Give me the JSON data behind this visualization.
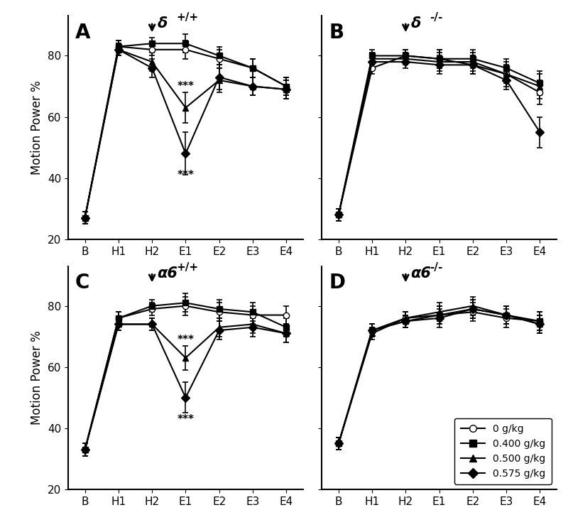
{
  "xticklabels": [
    "B",
    "H1",
    "H2",
    "E1",
    "E2",
    "E3",
    "E4"
  ],
  "x": [
    0,
    1,
    2,
    3,
    4,
    5,
    6
  ],
  "ylim": [
    20,
    93
  ],
  "yticks": [
    20,
    40,
    60,
    80
  ],
  "ylabel": "Motion Power %",
  "panels": [
    {
      "label": "A",
      "title": "δ",
      "title_superscript": "+/+",
      "series": [
        {
          "name": "0 g/kg",
          "marker": "o",
          "filled": false,
          "y": [
            27,
            83,
            82,
            82,
            79,
            76,
            70
          ],
          "yerr": [
            2,
            2,
            2,
            3,
            3,
            3,
            3
          ]
        },
        {
          "name": "0.400 g/kg",
          "marker": "s",
          "filled": true,
          "y": [
            27,
            83,
            84,
            84,
            80,
            76,
            70
          ],
          "yerr": [
            2,
            2,
            2,
            3,
            3,
            3,
            3
          ]
        },
        {
          "name": "0.500 g/kg",
          "marker": "^",
          "filled": true,
          "y": [
            27,
            82,
            78,
            63,
            72,
            70,
            69
          ],
          "yerr": [
            2,
            2,
            3,
            5,
            4,
            3,
            3
          ]
        },
        {
          "name": "0.575 g/kg",
          "marker": "D",
          "filled": true,
          "y": [
            27,
            82,
            76,
            48,
            73,
            70,
            69
          ],
          "yerr": [
            2,
            2,
            3,
            7,
            4,
            3,
            3
          ]
        }
      ],
      "arrow_xi": 2,
      "stars_upper": {
        "xi": 3,
        "y": 70,
        "text": "***"
      },
      "stars_lower": {
        "xi": 3,
        "y": 41,
        "text": "***"
      }
    },
    {
      "label": "B",
      "title": "δ",
      "title_superscript": "-/-",
      "series": [
        {
          "name": "0 g/kg",
          "marker": "o",
          "filled": false,
          "y": [
            28,
            76,
            80,
            79,
            77,
            74,
            68
          ],
          "yerr": [
            2,
            2,
            2,
            3,
            3,
            4,
            4
          ]
        },
        {
          "name": "0.400 g/kg",
          "marker": "s",
          "filled": true,
          "y": [
            28,
            80,
            80,
            79,
            79,
            76,
            71
          ],
          "yerr": [
            2,
            2,
            2,
            3,
            3,
            3,
            4
          ]
        },
        {
          "name": "0.500 g/kg",
          "marker": "^",
          "filled": true,
          "y": [
            28,
            79,
            79,
            78,
            78,
            74,
            70
          ],
          "yerr": [
            2,
            2,
            2,
            3,
            3,
            3,
            4
          ]
        },
        {
          "name": "0.575 g/kg",
          "marker": "D",
          "filled": true,
          "y": [
            28,
            78,
            78,
            77,
            77,
            72,
            55
          ],
          "yerr": [
            2,
            2,
            2,
            3,
            3,
            3,
            5
          ]
        }
      ],
      "arrow_xi": 2,
      "stars_upper": null,
      "stars_lower": null
    },
    {
      "label": "C",
      "title": "α6",
      "title_superscript": "+/+",
      "series": [
        {
          "name": "0 g/kg",
          "marker": "o",
          "filled": false,
          "y": [
            33,
            76,
            79,
            80,
            78,
            77,
            77
          ],
          "yerr": [
            2,
            2,
            2,
            3,
            3,
            3,
            3
          ]
        },
        {
          "name": "0.400 g/kg",
          "marker": "s",
          "filled": true,
          "y": [
            33,
            76,
            80,
            81,
            79,
            78,
            73
          ],
          "yerr": [
            2,
            2,
            2,
            3,
            3,
            3,
            3
          ]
        },
        {
          "name": "0.500 g/kg",
          "marker": "^",
          "filled": true,
          "y": [
            33,
            74,
            74,
            63,
            73,
            74,
            71
          ],
          "yerr": [
            2,
            2,
            2,
            4,
            3,
            3,
            3
          ]
        },
        {
          "name": "0.575 g/kg",
          "marker": "D",
          "filled": true,
          "y": [
            33,
            74,
            74,
            50,
            72,
            73,
            71
          ],
          "yerr": [
            2,
            2,
            2,
            5,
            3,
            3,
            3
          ]
        }
      ],
      "arrow_xi": 2,
      "stars_upper": {
        "xi": 3,
        "y": 69,
        "text": "***"
      },
      "stars_lower": {
        "xi": 3,
        "y": 43,
        "text": "***"
      }
    },
    {
      "label": "D",
      "title": "α6",
      "title_superscript": "-/-",
      "series": [
        {
          "name": "0 g/kg",
          "marker": "o",
          "filled": false,
          "y": [
            35,
            72,
            76,
            77,
            78,
            76,
            75
          ],
          "yerr": [
            2,
            2,
            2,
            3,
            3,
            3,
            3
          ]
        },
        {
          "name": "0.400 g/kg",
          "marker": "s",
          "filled": true,
          "y": [
            35,
            72,
            75,
            77,
            79,
            77,
            75
          ],
          "yerr": [
            2,
            2,
            2,
            3,
            3,
            3,
            3
          ]
        },
        {
          "name": "0.500 g/kg",
          "marker": "^",
          "filled": true,
          "y": [
            35,
            71,
            76,
            78,
            80,
            77,
            74
          ],
          "yerr": [
            2,
            2,
            2,
            3,
            3,
            3,
            3
          ]
        },
        {
          "name": "0.575 g/kg",
          "marker": "D",
          "filled": true,
          "y": [
            35,
            72,
            75,
            76,
            79,
            77,
            74
          ],
          "yerr": [
            2,
            2,
            2,
            3,
            3,
            3,
            3
          ]
        }
      ],
      "arrow_xi": 2,
      "stars_upper": null,
      "stars_lower": null
    }
  ],
  "legend_entries": [
    {
      "name": "0 g/kg",
      "marker": "o",
      "filled": false
    },
    {
      "name": "0.400 g/kg",
      "marker": "s",
      "filled": true
    },
    {
      "name": "0.500 g/kg",
      "marker": "^",
      "filled": true
    },
    {
      "name": "0.575 g/kg",
      "marker": "D",
      "filled": true
    }
  ]
}
